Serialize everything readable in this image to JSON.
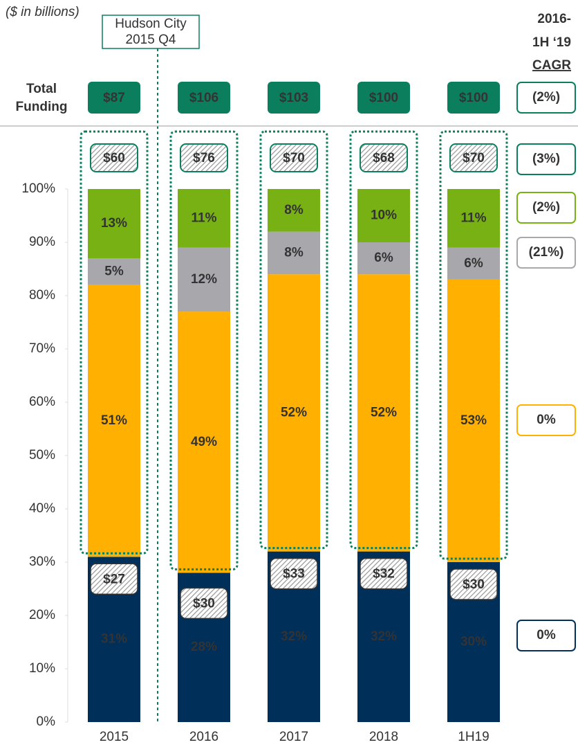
{
  "chart_data": {
    "type": "bar",
    "stacked": true,
    "subtitle": "($ in billions)",
    "annotation": [
      "Hudson City",
      "2015 Q4"
    ],
    "categories": [
      "2015",
      "2016",
      "2017",
      "2018",
      "1H19"
    ],
    "ylim": [
      0,
      100
    ],
    "yticks": [
      {
        "value": 0,
        "label": "0%"
      },
      {
        "value": 10,
        "label": "10%"
      },
      {
        "value": 20,
        "label": "20%"
      },
      {
        "value": 30,
        "label": "30%"
      },
      {
        "value": 40,
        "label": "40%"
      },
      {
        "value": 50,
        "label": "50%"
      },
      {
        "value": 60,
        "label": "60%"
      },
      {
        "value": 70,
        "label": "70%"
      },
      {
        "value": 80,
        "label": "80%"
      },
      {
        "value": 90,
        "label": "90%"
      },
      {
        "value": 100,
        "label": "100%"
      }
    ],
    "grid": false,
    "series": [
      {
        "color": "#00305a",
        "label_color": "#ffffff",
        "values": [
          31,
          28,
          32,
          32,
          30
        ],
        "value_labels": [
          "31%",
          "28%",
          "32%",
          "32%",
          "30%"
        ]
      },
      {
        "color": "#ffb000",
        "label_color": "#333333",
        "values": [
          51,
          49,
          52,
          52,
          53
        ],
        "value_labels": [
          "51%",
          "49%",
          "52%",
          "52%",
          "53%"
        ]
      },
      {
        "color": "#a8a7ac",
        "label_color": "#ffffff",
        "values": [
          5,
          12,
          8,
          6,
          6
        ],
        "value_labels": [
          "5%",
          "12%",
          "8%",
          "6%",
          "6%"
        ]
      },
      {
        "color": "#78b113",
        "label_color": "#333333",
        "values": [
          13,
          11,
          8,
          10,
          11
        ],
        "value_labels": [
          "13%",
          "11%",
          "8%",
          "10%",
          "11%"
        ]
      }
    ],
    "bottom_amounts": {
      "values": [
        27,
        30,
        33,
        32,
        30
      ],
      "value_labels": [
        "$27",
        "$30",
        "$33",
        "$32",
        "$30"
      ]
    },
    "top_amounts": {
      "values": [
        60,
        76,
        70,
        68,
        70
      ],
      "value_labels": [
        "$60",
        "$76",
        "$70",
        "$68",
        "$70"
      ]
    },
    "total_funding": {
      "label": [
        "Total",
        "Funding"
      ],
      "values": [
        87,
        106,
        103,
        100,
        100
      ],
      "value_labels": [
        "$87",
        "$106",
        "$103",
        "$100",
        "$100"
      ]
    },
    "cagr": {
      "title": [
        "2016-",
        "1H ‘19",
        "CAGR"
      ],
      "values": [
        -2,
        -3,
        -2,
        -21,
        0,
        0
      ],
      "value_labels": [
        "(2%)",
        "(3%)",
        "(2%)",
        "(21%)",
        "0%",
        "0%"
      ],
      "colors": [
        "#0b7f5d",
        "#0b7f5d",
        "#78b113",
        "#a8a7ac",
        "#ffb000",
        "#00305a"
      ]
    }
  }
}
